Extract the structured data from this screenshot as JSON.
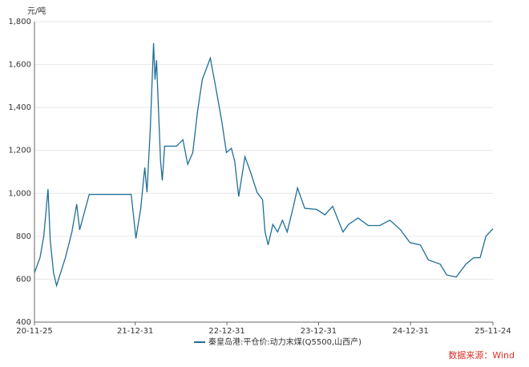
{
  "chart_data": {
    "type": "line",
    "y_unit": "元/吨",
    "x": [
      "20-11-25",
      "20-12-17",
      "21-01-01",
      "21-01-18",
      "21-01-27",
      "21-02-09",
      "21-02-21",
      "21-03-09",
      "21-03-28",
      "21-04-23",
      "21-05-12",
      "21-05-24",
      "21-07-01",
      "21-12-15",
      "22-01-03",
      "22-01-22",
      "22-02-07",
      "22-02-16",
      "22-03-01",
      "22-03-14",
      "22-03-20",
      "22-03-26",
      "22-04-11",
      "22-04-18",
      "22-04-27",
      "22-06-14",
      "22-07-09",
      "22-07-28",
      "22-08-17",
      "22-09-05",
      "22-09-24",
      "22-10-26",
      "22-11-14",
      "22-12-10",
      "22-12-29",
      "23-01-18",
      "23-01-31",
      "23-02-16",
      "23-03-13",
      "23-04-04",
      "23-04-30",
      "23-05-22",
      "23-06-01",
      "23-06-13",
      "23-07-02",
      "23-07-21",
      "23-08-09",
      "23-08-28",
      "23-09-20",
      "23-10-08",
      "23-11-06",
      "23-12-24",
      "24-01-25",
      "24-02-25",
      "24-04-06",
      "24-04-28",
      "24-06-05",
      "24-07-16",
      "24-08-30",
      "24-10-10",
      "24-11-21",
      "24-12-29",
      "25-02-08",
      "25-03-12",
      "25-04-28",
      "25-05-24",
      "25-07-01",
      "25-08-08",
      "25-09-08",
      "25-10-04",
      "25-10-27",
      "25-11-24"
    ],
    "series": [
      {
        "name": "秦皇岛港:平仓价:动力末煤(Q5500,山西产)",
        "color": "#1f6e96",
        "values": [
          630,
          700,
          800,
          1020,
          780,
          630,
          570,
          630,
          700,
          820,
          950,
          830,
          995,
          995,
          790,
          930,
          1120,
          1005,
          1300,
          1700,
          1530,
          1620,
          1150,
          1060,
          1220,
          1220,
          1250,
          1135,
          1190,
          1380,
          1530,
          1630,
          1510,
          1340,
          1190,
          1210,
          1150,
          985,
          1170,
          1100,
          1005,
          970,
          820,
          760,
          855,
          820,
          875,
          820,
          930,
          1025,
          930,
          925,
          900,
          940,
          820,
          855,
          885,
          850,
          850,
          875,
          830,
          770,
          760,
          690,
          670,
          620,
          610,
          670,
          700,
          700,
          800,
          835
        ]
      }
    ],
    "xlim": [
      "20-11-25",
      "25-11-24"
    ],
    "xticks": [
      "20-11-25",
      "21-12-31",
      "22-12-31",
      "23-12-31",
      "24-12-31",
      "25-11-24"
    ],
    "ylim": [
      400,
      1800
    ],
    "yticks": [
      400,
      600,
      800,
      {
        "value": 1000,
        "label": "1,000"
      },
      {
        "value": 1200,
        "label": "1,200"
      },
      {
        "value": 1400,
        "label": "1,400"
      },
      {
        "value": 1600,
        "label": "1,600"
      },
      {
        "value": 1800,
        "label": "1,800"
      }
    ],
    "grid": true,
    "source": "数据来源：Wind"
  }
}
